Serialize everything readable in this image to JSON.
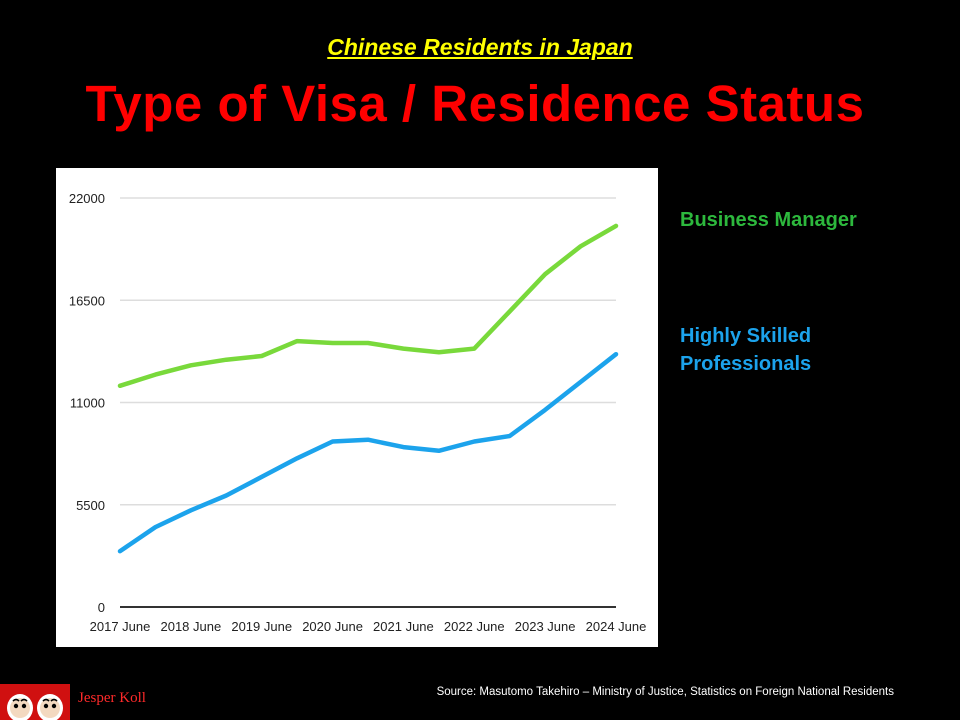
{
  "header": {
    "subtitle": "Chinese Residents in Japan",
    "title": "Type of Visa / Residence Status"
  },
  "legend": {
    "business_manager": "Business Manager",
    "highly_skilled": "Highly Skilled Professionals"
  },
  "footer": {
    "source": "Source: Masutomo Takehiro – Ministry of Justice, Statistics on Foreign National Residents",
    "author": "Jesper Koll",
    "logo_icon": "daruma-logo-icon"
  },
  "colors": {
    "background": "#000000",
    "title": "#ff0000",
    "subtitle": "#ffff00",
    "business_manager": "#2db83d",
    "highly_skilled": "#1ca3ec"
  },
  "chart_data": {
    "type": "line",
    "x": [
      "2017 June",
      "2017 Dec",
      "2018 June",
      "2018 Dec",
      "2019 June",
      "2019 Dec",
      "2020 June",
      "2020 Dec",
      "2021 June",
      "2021 Dec",
      "2022 June",
      "2022 Dec",
      "2023 June",
      "2023 Dec",
      "2024 June"
    ],
    "x_tick_labels": [
      "2017 June",
      "2018 June",
      "2019 June",
      "2020 June",
      "2021 June",
      "2022 June",
      "2023 June",
      "2024 June"
    ],
    "y_ticks": [
      0,
      5500,
      11000,
      16500,
      22000
    ],
    "ylim": [
      0,
      22000
    ],
    "grid": true,
    "series": [
      {
        "name": "Business Manager",
        "color": "#79d93b",
        "values": [
          11900,
          12500,
          13000,
          13300,
          13500,
          14300,
          14200,
          14200,
          13900,
          13700,
          13900,
          15900,
          17900,
          19400,
          20500
        ]
      },
      {
        "name": "Highly Skilled Professionals",
        "color": "#1ca3ec",
        "values": [
          3000,
          4300,
          5200,
          6000,
          7000,
          8000,
          8900,
          9000,
          8600,
          8400,
          8900,
          9200,
          10600,
          12100,
          13600
        ]
      }
    ]
  }
}
